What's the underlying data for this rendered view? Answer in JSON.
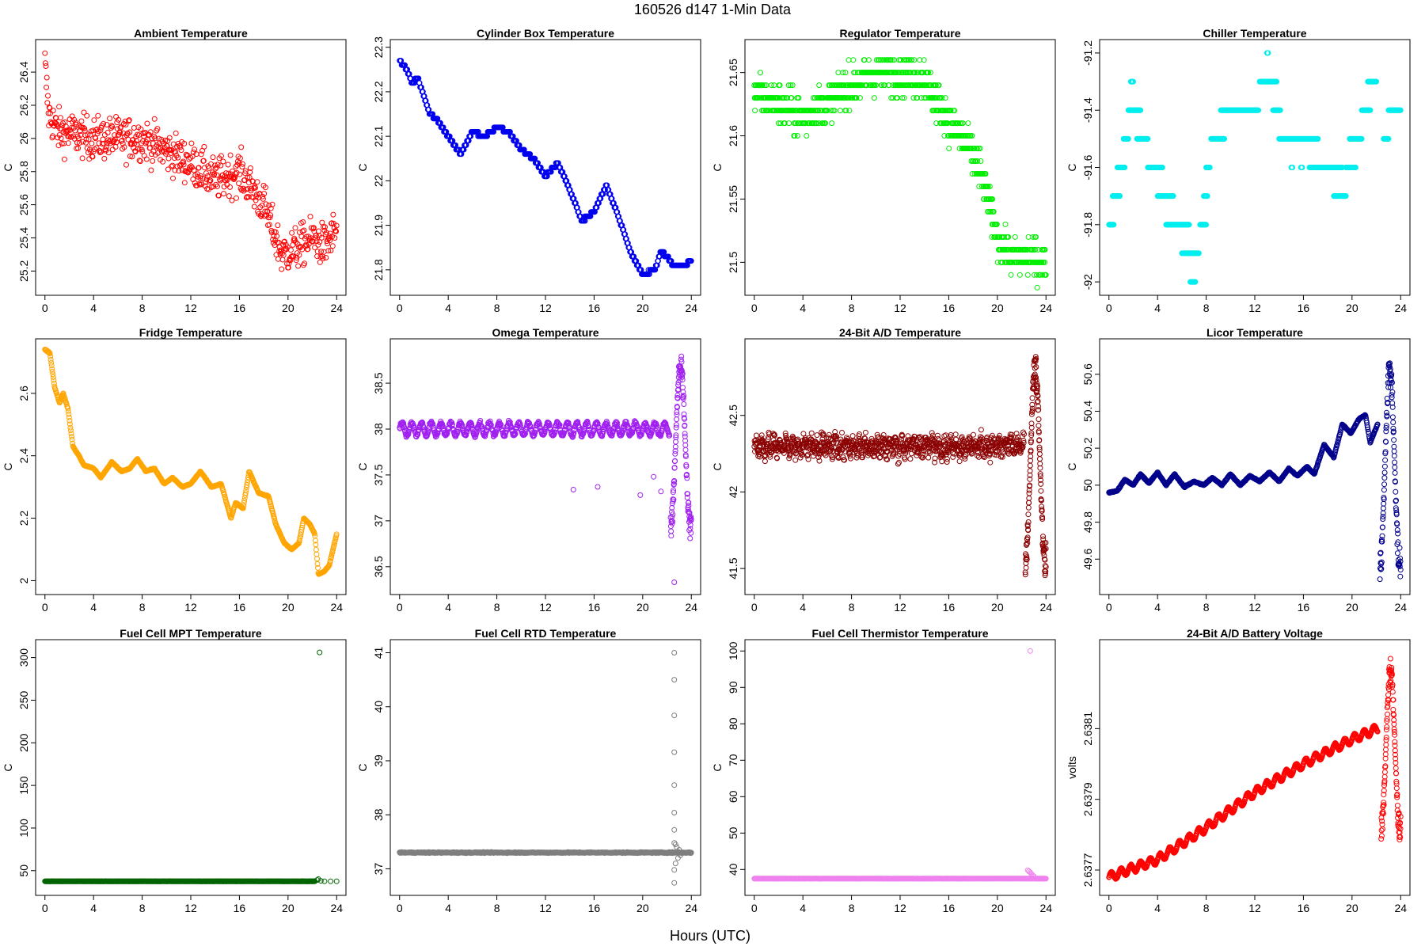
{
  "title": "160526   d147   1-Min Data",
  "xlabel": "Hours (UTC)",
  "chart_data": [
    {
      "type": "scatter",
      "title": "Ambient Temperature",
      "ylabel": "C",
      "color": "#ff0000",
      "xlim": [
        0,
        24
      ],
      "xticks": [
        0,
        4,
        8,
        12,
        16,
        20,
        24
      ],
      "ylim": [
        25.1,
        26.55
      ],
      "yticks": [
        25.2,
        25.4,
        25.6,
        25.8,
        26.0,
        26.2,
        26.4
      ],
      "kind": "noisy",
      "noise": 0.25,
      "n": 600,
      "trend": [
        [
          0,
          26.45
        ],
        [
          0.3,
          26.15
        ],
        [
          1,
          26.05
        ],
        [
          4,
          26.0
        ],
        [
          8,
          26.0
        ],
        [
          12,
          25.85
        ],
        [
          14,
          25.75
        ],
        [
          16,
          25.8
        ],
        [
          18,
          25.6
        ],
        [
          19.5,
          25.3
        ],
        [
          21,
          25.35
        ],
        [
          22,
          25.4
        ],
        [
          23,
          25.35
        ],
        [
          24,
          25.45
        ]
      ]
    },
    {
      "type": "scatter",
      "title": "Cylinder Box Temperature",
      "ylabel": "C",
      "color": "#0000ee",
      "xlim": [
        0,
        24
      ],
      "xticks": [
        0,
        4,
        8,
        12,
        16,
        20,
        24
      ],
      "ylim": [
        21.76,
        22.3
      ],
      "yticks": [
        21.8,
        21.9,
        22.0,
        22.1,
        22.2,
        22.3
      ],
      "kind": "line",
      "n": 600,
      "quantum": 0.01,
      "trend": [
        [
          0,
          22.27
        ],
        [
          0.6,
          22.25
        ],
        [
          1,
          22.22
        ],
        [
          1.5,
          22.23
        ],
        [
          2.5,
          22.15
        ],
        [
          3,
          22.14
        ],
        [
          4,
          22.1
        ],
        [
          5,
          22.06
        ],
        [
          6,
          22.11
        ],
        [
          7,
          22.1
        ],
        [
          8,
          22.12
        ],
        [
          9,
          22.11
        ],
        [
          10,
          22.07
        ],
        [
          11,
          22.05
        ],
        [
          12,
          22.01
        ],
        [
          13,
          22.04
        ],
        [
          14,
          21.98
        ],
        [
          15,
          21.91
        ],
        [
          16,
          21.93
        ],
        [
          17,
          21.99
        ],
        [
          18,
          21.92
        ],
        [
          19,
          21.84
        ],
        [
          20,
          21.79
        ],
        [
          21,
          21.8
        ],
        [
          21.5,
          21.84
        ],
        [
          22,
          21.83
        ],
        [
          22.5,
          21.81
        ],
        [
          23.5,
          21.81
        ],
        [
          24,
          21.82
        ]
      ]
    },
    {
      "type": "scatter",
      "title": "Regulator Temperature",
      "ylabel": "C",
      "color": "#00ee00",
      "xlim": [
        0,
        24
      ],
      "xticks": [
        0,
        4,
        8,
        12,
        16,
        20,
        24
      ],
      "ylim": [
        21.48,
        21.67
      ],
      "yticks": [
        21.5,
        21.55,
        21.6,
        21.65
      ],
      "kind": "noisy",
      "noise": 0.03,
      "n": 900,
      "quantum": 0.01,
      "trend": [
        [
          0,
          21.635
        ],
        [
          2,
          21.625
        ],
        [
          4,
          21.615
        ],
        [
          6,
          21.625
        ],
        [
          8,
          21.64
        ],
        [
          10,
          21.65
        ],
        [
          12,
          21.65
        ],
        [
          14,
          21.645
        ],
        [
          15,
          21.625
        ],
        [
          17,
          21.6
        ],
        [
          18,
          21.585
        ],
        [
          19,
          21.56
        ],
        [
          20,
          21.52
        ],
        [
          21,
          21.505
        ],
        [
          22.5,
          21.505
        ],
        [
          24,
          21.5
        ]
      ]
    },
    {
      "type": "scatter",
      "title": "Chiller Temperature",
      "ylabel": "C",
      "color": "#00eeee",
      "xlim": [
        0,
        24
      ],
      "xticks": [
        0,
        4,
        8,
        12,
        16,
        20,
        24
      ],
      "ylim": [
        -92.02,
        -91.18
      ],
      "yticks": [
        -92.0,
        -91.8,
        -91.6,
        -91.4,
        -91.2
      ],
      "kind": "segments",
      "segments": [
        [
          0,
          0.4,
          -91.8
        ],
        [
          0.3,
          0.9,
          -91.7
        ],
        [
          0.7,
          1.3,
          -91.6
        ],
        [
          1.2,
          1.6,
          -91.5
        ],
        [
          1.6,
          2.6,
          -91.4
        ],
        [
          1.8,
          2.0,
          -91.3
        ],
        [
          2.3,
          3.2,
          -91.5
        ],
        [
          3.2,
          4.4,
          -91.6
        ],
        [
          4.0,
          5.3,
          -91.7
        ],
        [
          4.7,
          6.6,
          -91.8
        ],
        [
          6.0,
          7.4,
          -91.9
        ],
        [
          6.7,
          7.1,
          -92.0
        ],
        [
          7.5,
          8.0,
          -91.8
        ],
        [
          7.8,
          8.1,
          -91.7
        ],
        [
          8.0,
          8.3,
          -91.6
        ],
        [
          8.4,
          9.5,
          -91.5
        ],
        [
          9.2,
          12.3,
          -91.4
        ],
        [
          12.4,
          13.8,
          -91.3
        ],
        [
          13.0,
          13.1,
          -91.2
        ],
        [
          13.5,
          14.1,
          -91.4
        ],
        [
          14.0,
          17.2,
          -91.5
        ],
        [
          15.0,
          15.1,
          -91.6
        ],
        [
          15.8,
          15.9,
          -91.6
        ],
        [
          16.5,
          19.2,
          -91.6
        ],
        [
          18.5,
          19.5,
          -91.7
        ],
        [
          19.5,
          20.3,
          -91.6
        ],
        [
          19.8,
          20.8,
          -91.5
        ],
        [
          20.8,
          21.5,
          -91.4
        ],
        [
          21.3,
          22.0,
          -91.3
        ],
        [
          22.6,
          23.0,
          -91.5
        ],
        [
          23.0,
          24.0,
          -91.4
        ]
      ]
    },
    {
      "type": "scatter",
      "title": "Fridge Temperature",
      "ylabel": "C",
      "color": "#ffa500",
      "xlim": [
        0,
        24
      ],
      "xticks": [
        0,
        4,
        8,
        12,
        16,
        20,
        24
      ],
      "ylim": [
        1.98,
        2.75
      ],
      "yticks": [
        2.0,
        2.2,
        2.4,
        2.6
      ],
      "kind": "line",
      "n": 700,
      "gapAfter": 22.2,
      "trend": [
        [
          0,
          2.74
        ],
        [
          0.4,
          2.73
        ],
        [
          0.8,
          2.62
        ],
        [
          1.2,
          2.57
        ],
        [
          1.5,
          2.6
        ],
        [
          1.9,
          2.55
        ],
        [
          2.3,
          2.43
        ],
        [
          2.8,
          2.4
        ],
        [
          3.2,
          2.37
        ],
        [
          4.0,
          2.36
        ],
        [
          4.6,
          2.33
        ],
        [
          5.5,
          2.38
        ],
        [
          6.3,
          2.35
        ],
        [
          7.0,
          2.36
        ],
        [
          7.6,
          2.39
        ],
        [
          8.3,
          2.35
        ],
        [
          9.0,
          2.36
        ],
        [
          9.8,
          2.31
        ],
        [
          10.5,
          2.33
        ],
        [
          11.3,
          2.3
        ],
        [
          12.0,
          2.31
        ],
        [
          12.8,
          2.35
        ],
        [
          13.7,
          2.3
        ],
        [
          14.5,
          2.31
        ],
        [
          15.3,
          2.2
        ],
        [
          15.7,
          2.25
        ],
        [
          16.3,
          2.23
        ],
        [
          16.8,
          2.35
        ],
        [
          17.6,
          2.28
        ],
        [
          18.4,
          2.27
        ],
        [
          19.0,
          2.18
        ],
        [
          19.7,
          2.12
        ],
        [
          20.3,
          2.1
        ],
        [
          20.9,
          2.12
        ],
        [
          21.3,
          2.2
        ],
        [
          21.8,
          2.18
        ],
        [
          22.2,
          2.15
        ],
        [
          22.5,
          2.02
        ],
        [
          23.0,
          2.03
        ],
        [
          23.4,
          2.05
        ],
        [
          24.0,
          2.15
        ]
      ]
    },
    {
      "type": "scatter",
      "title": "Omega Temperature",
      "ylabel": "C",
      "color": "#a020f0",
      "xlim": [
        0,
        24
      ],
      "xticks": [
        0,
        4,
        8,
        12,
        16,
        20,
        24
      ],
      "ylim": [
        36.28,
        38.9
      ],
      "yticks": [
        36.5,
        37.0,
        37.5,
        38.0,
        38.5
      ],
      "kind": "wave",
      "n": 800,
      "base": 38.0,
      "amp": 0.07,
      "period": 0.8,
      "endX": 22.2,
      "extra": [
        [
          14.3,
          37.34
        ],
        [
          16.3,
          37.37
        ],
        [
          19.8,
          37.28
        ],
        [
          20.9,
          37.48
        ],
        [
          21.5,
          37.32
        ],
        [
          22.6,
          36.33
        ]
      ],
      "spike": {
        "start": 22.3,
        "end": 24.0,
        "lo": 36.8,
        "hi": 38.85,
        "n": 120
      }
    },
    {
      "type": "scatter",
      "title": "24-Bit A/D Temperature",
      "ylabel": "C",
      "color": "#8b0000",
      "xlim": [
        0,
        24
      ],
      "xticks": [
        0,
        4,
        8,
        12,
        16,
        20,
        24
      ],
      "ylim": [
        41.38,
        42.95
      ],
      "yticks": [
        41.5,
        42.0,
        42.5
      ],
      "kind": "wave",
      "n": 900,
      "base": 42.3,
      "amp": 0.04,
      "period": 0.5,
      "noise": 0.12,
      "endX": 22.2,
      "spike": {
        "start": 22.3,
        "end": 24.0,
        "lo": 41.45,
        "hi": 42.9,
        "n": 140
      }
    },
    {
      "type": "scatter",
      "title": "Licor Temperature",
      "ylabel": "C",
      "color": "#00008b",
      "xlim": [
        0,
        24
      ],
      "xticks": [
        0,
        4,
        8,
        12,
        16,
        20,
        24
      ],
      "ylim": [
        49.45,
        50.75
      ],
      "yticks": [
        49.6,
        49.8,
        50.0,
        50.2,
        50.4,
        50.6
      ],
      "kind": "line",
      "n": 700,
      "gapAfter": 22.1,
      "trend": [
        [
          0,
          49.96
        ],
        [
          0.7,
          49.97
        ],
        [
          1.3,
          50.03
        ],
        [
          2.0,
          50.0
        ],
        [
          2.6,
          50.06
        ],
        [
          3.3,
          50.01
        ],
        [
          4.0,
          50.07
        ],
        [
          4.7,
          50.0
        ],
        [
          5.4,
          50.06
        ],
        [
          6.2,
          49.99
        ],
        [
          7.0,
          50.02
        ],
        [
          7.8,
          50.0
        ],
        [
          8.5,
          50.04
        ],
        [
          9.3,
          50.0
        ],
        [
          10.0,
          50.06
        ],
        [
          10.8,
          50.0
        ],
        [
          11.6,
          50.05
        ],
        [
          12.4,
          50.02
        ],
        [
          13.2,
          50.07
        ],
        [
          14.0,
          50.02
        ],
        [
          14.8,
          50.09
        ],
        [
          15.5,
          50.05
        ],
        [
          16.3,
          50.1
        ],
        [
          16.9,
          50.06
        ],
        [
          17.7,
          50.22
        ],
        [
          18.5,
          50.15
        ],
        [
          19.2,
          50.33
        ],
        [
          19.9,
          50.28
        ],
        [
          20.6,
          50.36
        ],
        [
          21.1,
          50.38
        ],
        [
          21.5,
          50.23
        ],
        [
          22.1,
          50.33
        ]
      ],
      "spike": {
        "start": 22.3,
        "end": 24.0,
        "lo": 49.48,
        "hi": 50.72,
        "n": 110
      }
    },
    {
      "type": "scatter",
      "title": "Fuel Cell MPT Temperature",
      "ylabel": "C",
      "color": "#006400",
      "xlim": [
        0,
        24
      ],
      "xticks": [
        0,
        4,
        8,
        12,
        16,
        20,
        24
      ],
      "ylim": [
        30,
        312
      ],
      "yticks": [
        50,
        100,
        150,
        200,
        250,
        300
      ],
      "kind": "flat",
      "n": 600,
      "base": 37.5,
      "noise": 0.4,
      "endX": 22.2,
      "extra": [
        [
          22.6,
          306
        ],
        [
          22.4,
          39
        ],
        [
          22.5,
          40
        ],
        [
          22.7,
          38
        ],
        [
          23.0,
          37.5
        ],
        [
          23.5,
          37.5
        ],
        [
          24.0,
          37.5
        ]
      ]
    },
    {
      "type": "scatter",
      "title": "Fuel Cell RTD Temperature",
      "ylabel": "C",
      "color": "#7f7f7f",
      "xlim": [
        0,
        24
      ],
      "xticks": [
        0,
        4,
        8,
        12,
        16,
        20,
        24
      ],
      "ylim": [
        36.65,
        41.1
      ],
      "yticks": [
        37,
        38,
        39,
        40,
        41
      ],
      "kind": "flat",
      "n": 700,
      "base": 37.3,
      "noise": 0.03,
      "endX": 24.0,
      "extra": [
        [
          22.6,
          41.0
        ],
        [
          22.6,
          40.5
        ],
        [
          22.6,
          39.84
        ],
        [
          22.6,
          39.16
        ],
        [
          22.6,
          38.55
        ],
        [
          22.6,
          38.04
        ],
        [
          22.6,
          37.72
        ],
        [
          22.6,
          37.48
        ],
        [
          22.7,
          37.45
        ],
        [
          22.7,
          37.1
        ],
        [
          22.6,
          36.98
        ],
        [
          22.6,
          36.74
        ],
        [
          22.8,
          37.4
        ],
        [
          22.9,
          37.2
        ],
        [
          23.0,
          37.35
        ],
        [
          23.1,
          37.25
        ]
      ]
    },
    {
      "type": "scatter",
      "title": "Fuel Cell Thermistor Temperature",
      "ylabel": "C",
      "color": "#ee82ee",
      "xlim": [
        0,
        24
      ],
      "xticks": [
        0,
        4,
        8,
        12,
        16,
        20,
        24
      ],
      "ylim": [
        35,
        101
      ],
      "yticks": [
        40,
        50,
        60,
        70,
        80,
        90,
        100
      ],
      "kind": "flat",
      "n": 600,
      "base": 37.5,
      "noise": 0.1,
      "endX": 24.0,
      "extra": [
        [
          22.7,
          100
        ],
        [
          22.5,
          39.8
        ],
        [
          22.6,
          39.5
        ],
        [
          22.7,
          39.2
        ],
        [
          22.8,
          38.8
        ],
        [
          22.9,
          38.4
        ],
        [
          23.0,
          38.1
        ]
      ]
    },
    {
      "type": "scatter",
      "title": "24-Bit A/D Battery Voltage",
      "ylabel": "volts",
      "color": "#ff0000",
      "xlim": [
        0,
        24
      ],
      "xticks": [
        0,
        4,
        8,
        12,
        16,
        20,
        24
      ],
      "ylim": [
        2.63765,
        2.63833
      ],
      "yticks": [
        2.6377,
        2.6379,
        2.6381
      ],
      "kind": "line",
      "n": 800,
      "gapAfter": 22.1,
      "ripple": 1.2e-05,
      "ripplePeriod": 0.8,
      "trend": [
        [
          0,
          2.63768
        ],
        [
          4,
          2.63773
        ],
        [
          8,
          2.63782
        ],
        [
          12,
          2.63792
        ],
        [
          16,
          2.638
        ],
        [
          20,
          2.63807
        ],
        [
          22.1,
          2.6381
        ]
      ],
      "spike": {
        "start": 22.4,
        "end": 24.0,
        "lo": 2.63778,
        "hi": 2.6383,
        "n": 110
      }
    }
  ]
}
